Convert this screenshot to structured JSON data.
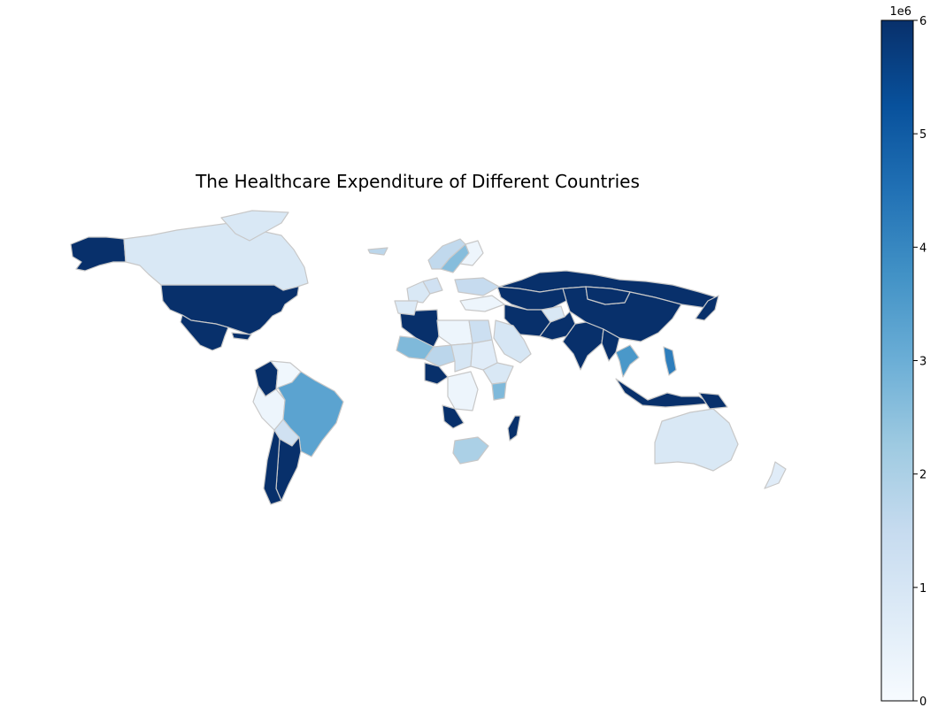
{
  "chart_data": {
    "type": "choropleth",
    "title": "The Healthcare Expenditure of Different Countries",
    "colormap": "Blues",
    "colorbar": {
      "range": [
        0,
        6000000
      ],
      "ticks": [
        "0",
        "1",
        "2",
        "3",
        "4",
        "5",
        "6"
      ],
      "multiplier_label": "1e6",
      "color_stops": [
        "#f7fbff",
        "#deebf7",
        "#c6dbef",
        "#9ecae1",
        "#6baed6",
        "#4292c6",
        "#2171b5",
        "#08519c",
        "#08306b"
      ]
    },
    "border_color": "#c8c8c8",
    "countries": [
      {
        "name": "United States",
        "value": 6000000
      },
      {
        "name": "Alaska (United States)",
        "value": 6000000
      },
      {
        "name": "Canada",
        "value": 900000
      },
      {
        "name": "Greenland",
        "value": 900000
      },
      {
        "name": "Mexico",
        "value": 6000000
      },
      {
        "name": "Colombia",
        "value": 6000000
      },
      {
        "name": "Venezuela",
        "value": 200000
      },
      {
        "name": "Peru",
        "value": 300000
      },
      {
        "name": "Brazil",
        "value": 3300000
      },
      {
        "name": "Bolivia",
        "value": 1200000
      },
      {
        "name": "Argentina",
        "value": 6000000
      },
      {
        "name": "Chile",
        "value": 6000000
      },
      {
        "name": "Russia",
        "value": 6000000
      },
      {
        "name": "China",
        "value": 6000000
      },
      {
        "name": "Mongolia",
        "value": 6000000
      },
      {
        "name": "Kazakhstan",
        "value": 6000000
      },
      {
        "name": "India",
        "value": 6000000
      },
      {
        "name": "Iran",
        "value": 6000000
      },
      {
        "name": "Pakistan",
        "value": 6000000
      },
      {
        "name": "Afghanistan",
        "value": 900000
      },
      {
        "name": "Saudi Arabia",
        "value": 1000000
      },
      {
        "name": "Japan",
        "value": 6000000
      },
      {
        "name": "Indonesia",
        "value": 6000000
      },
      {
        "name": "Papua New Guinea",
        "value": 6000000
      },
      {
        "name": "Myanmar",
        "value": 6000000
      },
      {
        "name": "Thailand",
        "value": 3600000
      },
      {
        "name": "Philippines",
        "value": 4200000
      },
      {
        "name": "Australia",
        "value": 900000
      },
      {
        "name": "New Zealand",
        "value": 700000
      },
      {
        "name": "Algeria",
        "value": 6000000
      },
      {
        "name": "Libya",
        "value": 300000
      },
      {
        "name": "Egypt",
        "value": 1300000
      },
      {
        "name": "Mali",
        "value": 2700000
      },
      {
        "name": "Niger",
        "value": 1700000
      },
      {
        "name": "Nigeria",
        "value": 6000000
      },
      {
        "name": "Chad",
        "value": 1000000
      },
      {
        "name": "Sudan",
        "value": 700000
      },
      {
        "name": "Ethiopia",
        "value": 900000
      },
      {
        "name": "Kenya",
        "value": 2700000
      },
      {
        "name": "Angola",
        "value": 6000000
      },
      {
        "name": "Congo (DRC)",
        "value": 300000
      },
      {
        "name": "South Africa",
        "value": 2000000
      },
      {
        "name": "Madagascar",
        "value": 6000000
      },
      {
        "name": "Sweden",
        "value": 2600000
      },
      {
        "name": "Norway",
        "value": 1600000
      },
      {
        "name": "Finland",
        "value": 300000
      },
      {
        "name": "France",
        "value": 900000
      },
      {
        "name": "Spain",
        "value": 800000
      },
      {
        "name": "Germany",
        "value": 1200000
      },
      {
        "name": "Ukraine",
        "value": 1500000
      },
      {
        "name": "Turkey",
        "value": 300000
      },
      {
        "name": "Iceland",
        "value": 1700000
      },
      {
        "name": "Cuba",
        "value": 6000000
      }
    ]
  }
}
